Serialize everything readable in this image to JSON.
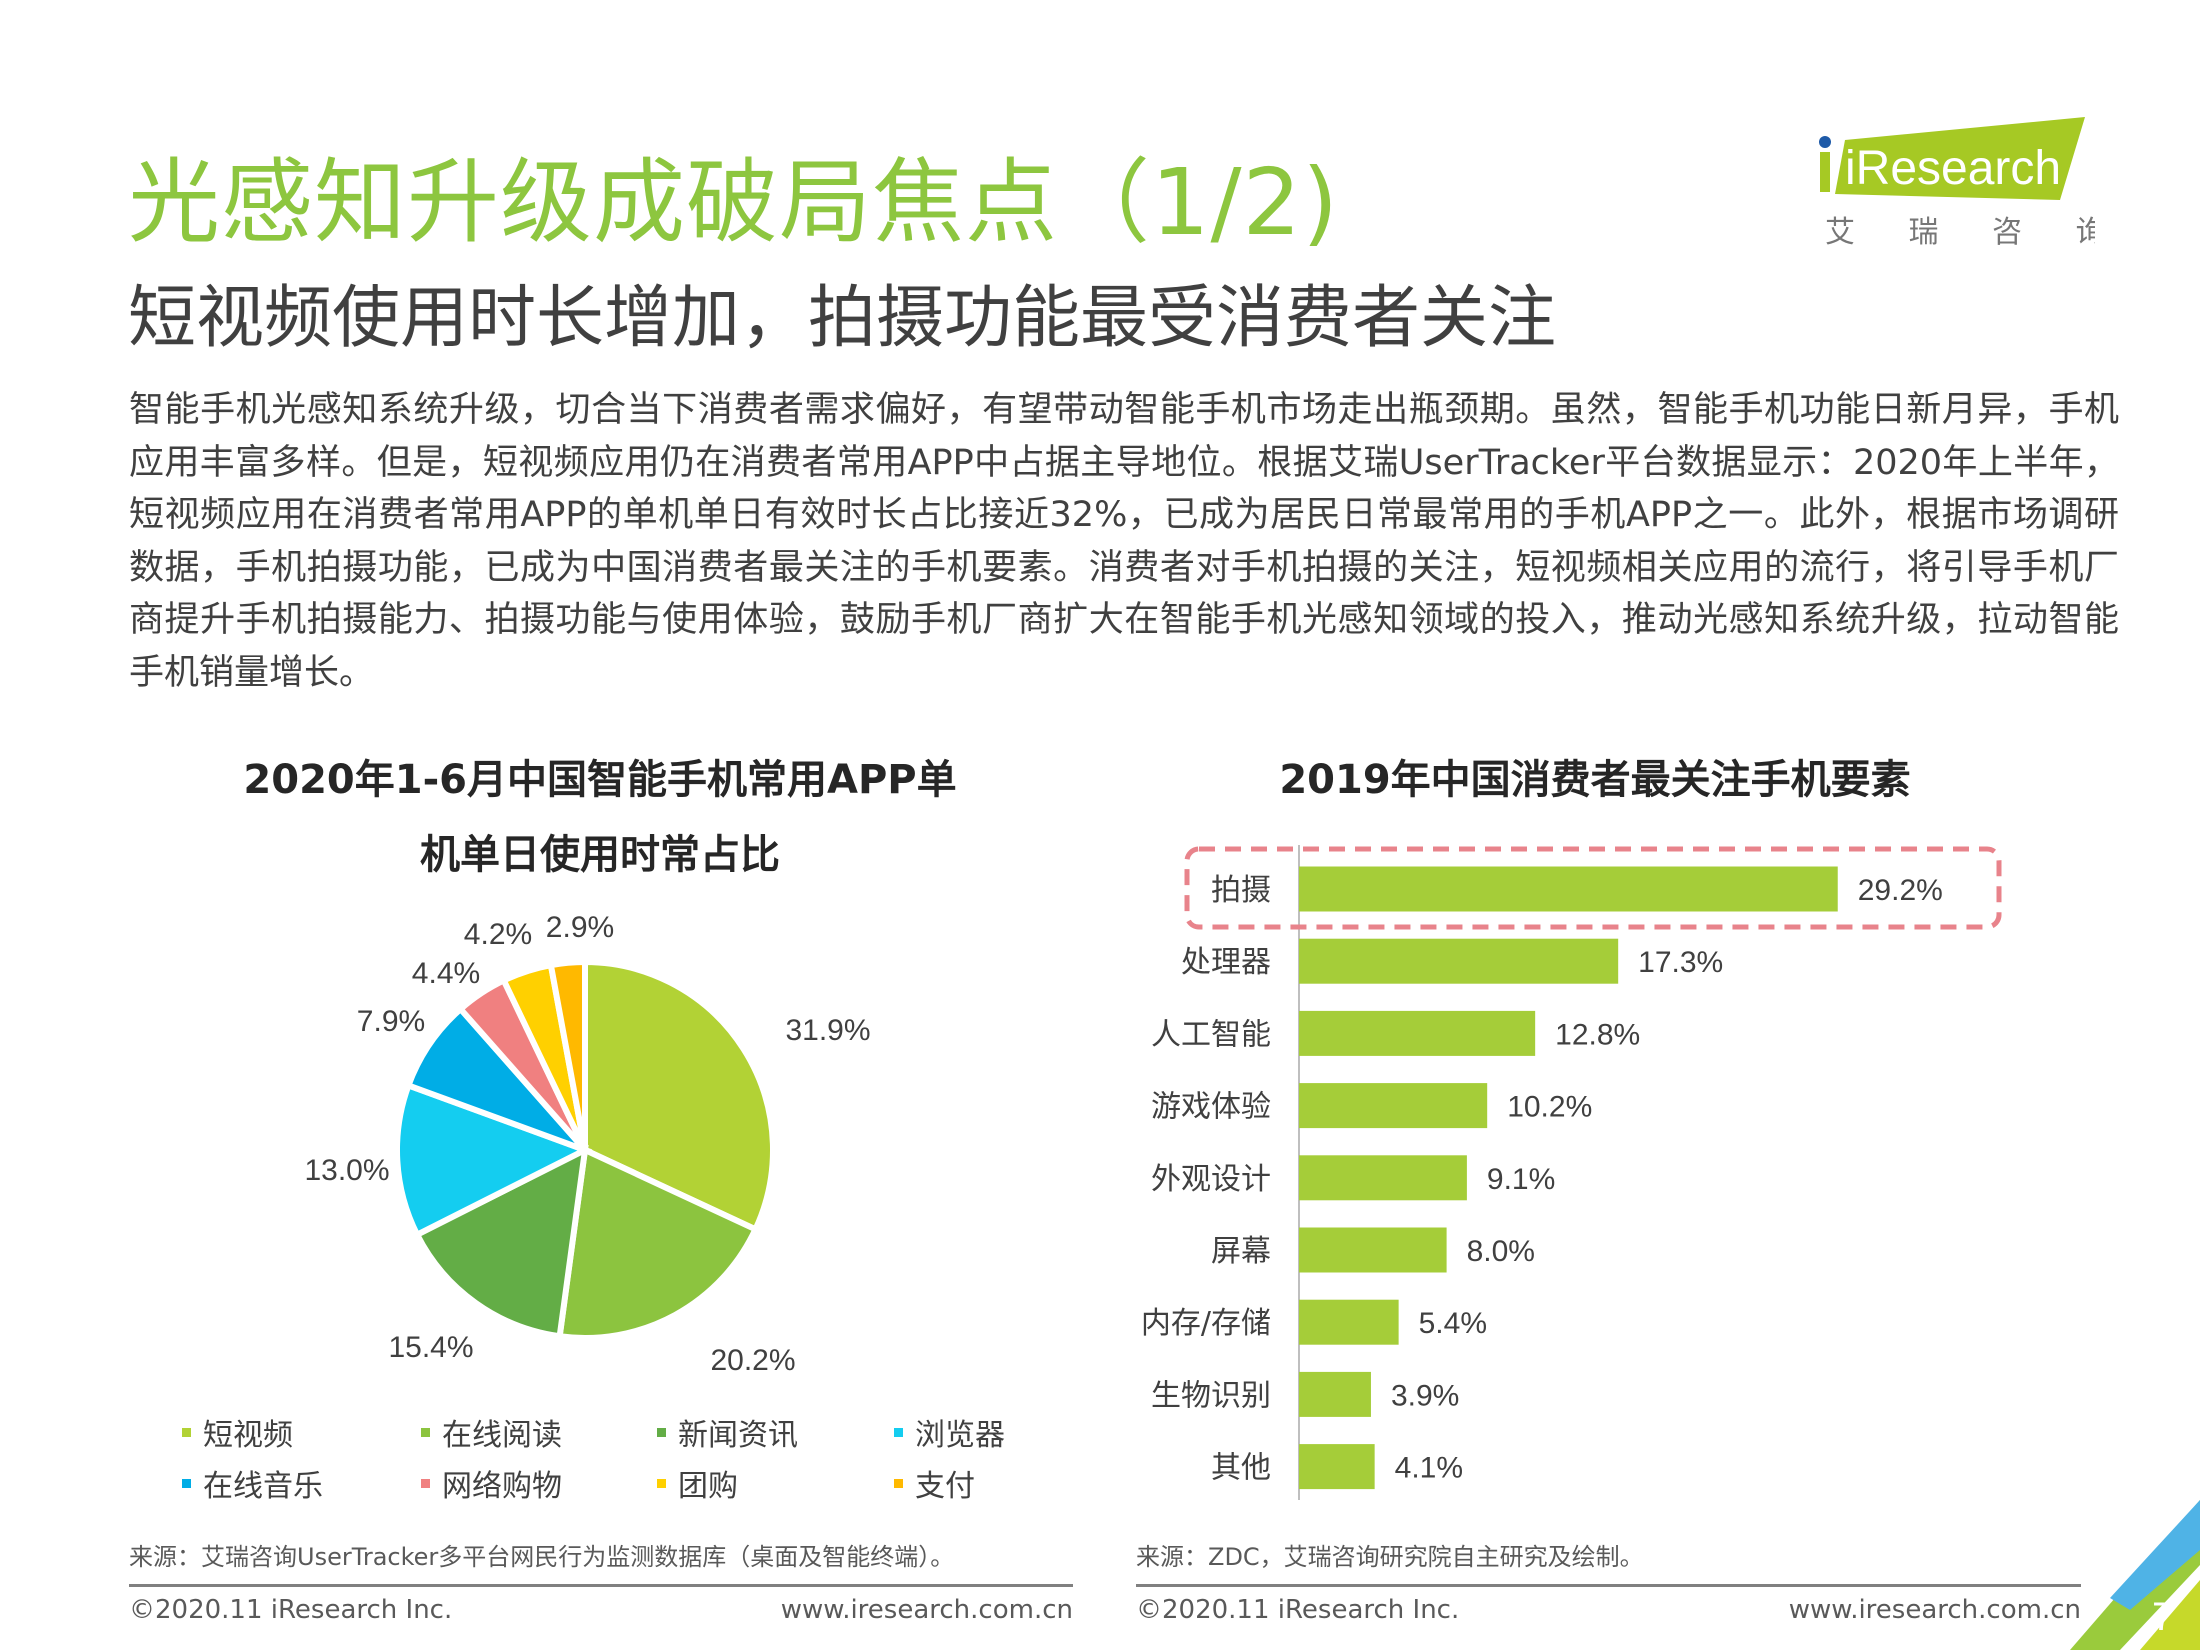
{
  "header": {
    "title": "光感知升级成破局焦点（1/2)",
    "subtitle": "短视频使用时长增加，拍摄功能最受消费者关注",
    "paragraph": "智能手机光感知系统升级，切合当下消费者需求偏好，有望带动智能手机市场走出瓶颈期。虽然，智能手机功能日新月异，手机应用丰富多样。但是，短视频应用仍在消费者常用APP中占据主导地位。根据艾瑞UserTracker平台数据显示：2020年上半年，短视频应用在消费者常用APP的单机单日有效时长占比接近32%，已成为居民日常最常用的手机APP之一。此外，根据市场调研数据，手机拍摄功能，已成为中国消费者最关注的手机要素。消费者对手机拍摄的关注，短视频相关应用的流行，将引导手机厂商提升手机拍摄能力、拍摄功能与使用体验，鼓励手机厂商扩大在智能手机光感知领域的投入，推动光感知系统升级，拉动智能手机销量增长。"
  },
  "logo": {
    "brand": "iResearch",
    "cn": "艾 瑞 咨 询"
  },
  "chart_data": [
    {
      "type": "pie",
      "title": "2020年1-6月中国智能手机常用APP单机单日使用时常占比",
      "title_lines": [
        "2020年1-6月中国智能手机常用APP单",
        "机单日使用时常占比"
      ],
      "categories": [
        "短视频",
        "在线阅读",
        "新闻资讯",
        "浏览器",
        "在线音乐",
        "网络购物",
        "团购",
        "支付"
      ],
      "values": [
        31.9,
        20.2,
        15.4,
        13.0,
        7.9,
        4.4,
        4.2,
        2.9
      ],
      "labels": [
        "31.9%",
        "20.2%",
        "15.4%",
        "13.0%",
        "7.9%",
        "4.4%",
        "4.2%",
        "2.9%"
      ],
      "colors": [
        "#b2d235",
        "#8cc43f",
        "#63ad46",
        "#14cdf0",
        "#00ade6",
        "#f08080",
        "#ffd000",
        "#ffb900"
      ],
      "legend": "bottom"
    },
    {
      "type": "bar",
      "title": "2019年中国消费者最关注手机要素",
      "categories": [
        "拍摄",
        "处理器",
        "人工智能",
        "游戏体验",
        "外观设计",
        "屏幕",
        "内存/存储",
        "生物识别",
        "其他"
      ],
      "values": [
        29.2,
        17.3,
        12.8,
        10.2,
        9.1,
        8.0,
        5.4,
        3.9,
        4.1
      ],
      "labels": [
        "29.2%",
        "17.3%",
        "12.8%",
        "10.2%",
        "9.1%",
        "8.0%",
        "5.4%",
        "3.9%",
        "4.1%"
      ],
      "color": "#a5cd39",
      "highlight_color": "#e8838b",
      "highlight_index": 0,
      "orientation": "horizontal"
    }
  ],
  "sources": {
    "left": "来源：艾瑞咨询UserTracker多平台网民行为监测数据库（桌面及智能终端）。",
    "right": "来源：ZDC，艾瑞咨询研究院自主研究及绘制。"
  },
  "footer": {
    "copyright": "©2020.11 iResearch Inc.",
    "url": "www.iresearch.com.cn",
    "page": "7"
  },
  "colors": {
    "title": "#8dc63f",
    "text": "#404040"
  }
}
